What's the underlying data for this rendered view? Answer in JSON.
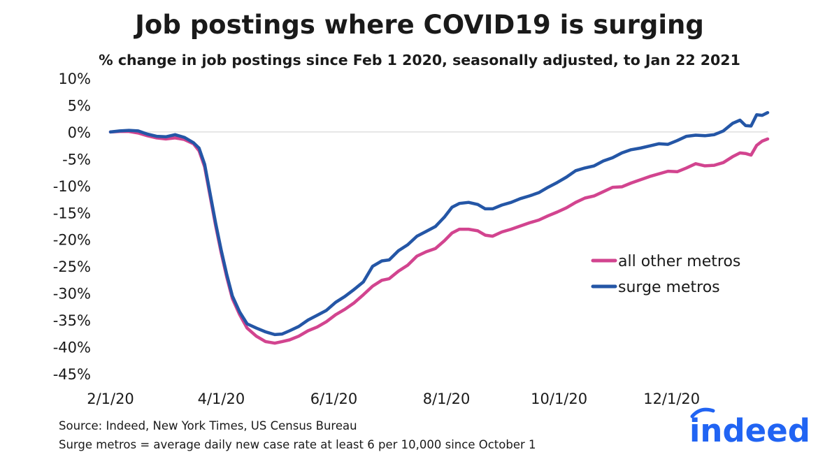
{
  "chart_data": {
    "type": "line",
    "title": "Job postings where COVID19 is surging",
    "subtitle": "% change in job postings since Feb 1 2020, seasonally adjusted, to Jan 22 2021",
    "xlabel": "",
    "ylabel": "",
    "x_start": "2020-02-01",
    "x_end": "2021-01-22",
    "ylim": [
      -45,
      10
    ],
    "y_ticks": [
      10,
      5,
      0,
      -5,
      -10,
      -15,
      -20,
      -25,
      -30,
      -35,
      -40,
      -45
    ],
    "y_tick_labels": [
      "10%",
      "5%",
      "0%",
      "-5%",
      "-10%",
      "-15%",
      "-20%",
      "-25%",
      "-30%",
      "-35%",
      "-40%",
      "-45%"
    ],
    "x_ticks": [
      "2020-02-01",
      "2020-04-01",
      "2020-06-01",
      "2020-08-01",
      "2020-10-01",
      "2020-12-01"
    ],
    "x_tick_labels": [
      "2/1/20",
      "4/1/20",
      "6/1/20",
      "8/1/20",
      "10/1/20",
      "12/1/20"
    ],
    "grid": false,
    "legend_position": "right",
    "series": [
      {
        "name": "all other metros",
        "color": "#d2448f",
        "points": [
          [
            "2020-02-01",
            0.0
          ],
          [
            "2020-02-06",
            0.1
          ],
          [
            "2020-02-11",
            0.1
          ],
          [
            "2020-02-16",
            -0.2
          ],
          [
            "2020-02-21",
            -0.7
          ],
          [
            "2020-02-26",
            -1.1
          ],
          [
            "2020-03-02",
            -1.3
          ],
          [
            "2020-03-07",
            -1.1
          ],
          [
            "2020-03-12",
            -1.4
          ],
          [
            "2020-03-17",
            -2.2
          ],
          [
            "2020-03-20",
            -3.5
          ],
          [
            "2020-03-23",
            -6.5
          ],
          [
            "2020-03-26",
            -12.0
          ],
          [
            "2020-03-29",
            -17.5
          ],
          [
            "2020-04-01",
            -22.5
          ],
          [
            "2020-04-04",
            -27.0
          ],
          [
            "2020-04-07",
            -31.0
          ],
          [
            "2020-04-11",
            -34.0
          ],
          [
            "2020-04-15",
            -36.5
          ],
          [
            "2020-04-20",
            -38.0
          ],
          [
            "2020-04-25",
            -39.0
          ],
          [
            "2020-04-30",
            -39.3
          ],
          [
            "2020-05-04",
            -39.0
          ],
          [
            "2020-05-08",
            -38.7
          ],
          [
            "2020-05-13",
            -38.0
          ],
          [
            "2020-05-18",
            -37.0
          ],
          [
            "2020-05-23",
            -36.3
          ],
          [
            "2020-05-28",
            -35.3
          ],
          [
            "2020-06-02",
            -34.0
          ],
          [
            "2020-06-07",
            -33.0
          ],
          [
            "2020-06-12",
            -31.8
          ],
          [
            "2020-06-17",
            -30.3
          ],
          [
            "2020-06-22",
            -28.7
          ],
          [
            "2020-06-27",
            -27.6
          ],
          [
            "2020-07-01",
            -27.3
          ],
          [
            "2020-07-06",
            -25.9
          ],
          [
            "2020-07-11",
            -24.8
          ],
          [
            "2020-07-16",
            -23.1
          ],
          [
            "2020-07-21",
            -22.3
          ],
          [
            "2020-07-26",
            -21.7
          ],
          [
            "2020-07-31",
            -20.2
          ],
          [
            "2020-08-04",
            -18.8
          ],
          [
            "2020-08-08",
            -18.1
          ],
          [
            "2020-08-13",
            -18.1
          ],
          [
            "2020-08-18",
            -18.4
          ],
          [
            "2020-08-22",
            -19.2
          ],
          [
            "2020-08-26",
            -19.4
          ],
          [
            "2020-08-31",
            -18.6
          ],
          [
            "2020-09-05",
            -18.1
          ],
          [
            "2020-09-10",
            -17.5
          ],
          [
            "2020-09-15",
            -16.9
          ],
          [
            "2020-09-20",
            -16.4
          ],
          [
            "2020-09-25",
            -15.6
          ],
          [
            "2020-09-30",
            -14.9
          ],
          [
            "2020-10-05",
            -14.1
          ],
          [
            "2020-10-10",
            -13.1
          ],
          [
            "2020-10-15",
            -12.3
          ],
          [
            "2020-10-20",
            -11.9
          ],
          [
            "2020-10-25",
            -11.1
          ],
          [
            "2020-10-30",
            -10.3
          ],
          [
            "2020-11-04",
            -10.2
          ],
          [
            "2020-11-09",
            -9.5
          ],
          [
            "2020-11-14",
            -8.9
          ],
          [
            "2020-11-19",
            -8.3
          ],
          [
            "2020-11-24",
            -7.8
          ],
          [
            "2020-11-29",
            -7.3
          ],
          [
            "2020-12-04",
            -7.4
          ],
          [
            "2020-12-09",
            -6.7
          ],
          [
            "2020-12-14",
            -5.9
          ],
          [
            "2020-12-19",
            -6.3
          ],
          [
            "2020-12-24",
            -6.2
          ],
          [
            "2020-12-29",
            -5.7
          ],
          [
            "2021-01-03",
            -4.6
          ],
          [
            "2021-01-07",
            -3.9
          ],
          [
            "2021-01-10",
            -4.0
          ],
          [
            "2021-01-13",
            -4.3
          ],
          [
            "2021-01-16",
            -2.5
          ],
          [
            "2021-01-19",
            -1.7
          ],
          [
            "2021-01-22",
            -1.3
          ]
        ]
      },
      {
        "name": "surge metros",
        "color": "#2456a6",
        "points": [
          [
            "2020-02-01",
            0.0
          ],
          [
            "2020-02-06",
            0.2
          ],
          [
            "2020-02-11",
            0.3
          ],
          [
            "2020-02-16",
            0.2
          ],
          [
            "2020-02-21",
            -0.4
          ],
          [
            "2020-02-26",
            -0.8
          ],
          [
            "2020-03-02",
            -0.9
          ],
          [
            "2020-03-07",
            -0.5
          ],
          [
            "2020-03-12",
            -1.0
          ],
          [
            "2020-03-17",
            -2.0
          ],
          [
            "2020-03-20",
            -3.0
          ],
          [
            "2020-03-23",
            -6.0
          ],
          [
            "2020-03-26",
            -11.5
          ],
          [
            "2020-03-29",
            -17.0
          ],
          [
            "2020-04-01",
            -22.0
          ],
          [
            "2020-04-04",
            -26.5
          ],
          [
            "2020-04-07",
            -30.5
          ],
          [
            "2020-04-11",
            -33.5
          ],
          [
            "2020-04-15",
            -35.7
          ],
          [
            "2020-04-20",
            -36.5
          ],
          [
            "2020-04-25",
            -37.2
          ],
          [
            "2020-04-30",
            -37.7
          ],
          [
            "2020-05-04",
            -37.6
          ],
          [
            "2020-05-08",
            -37.0
          ],
          [
            "2020-05-13",
            -36.2
          ],
          [
            "2020-05-18",
            -35.0
          ],
          [
            "2020-05-23",
            -34.1
          ],
          [
            "2020-05-28",
            -33.2
          ],
          [
            "2020-06-02",
            -31.7
          ],
          [
            "2020-06-07",
            -30.6
          ],
          [
            "2020-06-12",
            -29.3
          ],
          [
            "2020-06-17",
            -27.9
          ],
          [
            "2020-06-22",
            -25.0
          ],
          [
            "2020-06-27",
            -24.0
          ],
          [
            "2020-07-01",
            -23.8
          ],
          [
            "2020-07-06",
            -22.1
          ],
          [
            "2020-07-11",
            -21.0
          ],
          [
            "2020-07-16",
            -19.4
          ],
          [
            "2020-07-21",
            -18.5
          ],
          [
            "2020-07-26",
            -17.6
          ],
          [
            "2020-07-31",
            -15.8
          ],
          [
            "2020-08-04",
            -14.0
          ],
          [
            "2020-08-08",
            -13.3
          ],
          [
            "2020-08-13",
            -13.1
          ],
          [
            "2020-08-18",
            -13.5
          ],
          [
            "2020-08-22",
            -14.3
          ],
          [
            "2020-08-26",
            -14.3
          ],
          [
            "2020-08-31",
            -13.6
          ],
          [
            "2020-09-05",
            -13.1
          ],
          [
            "2020-09-10",
            -12.4
          ],
          [
            "2020-09-15",
            -11.9
          ],
          [
            "2020-09-20",
            -11.3
          ],
          [
            "2020-09-25",
            -10.3
          ],
          [
            "2020-09-30",
            -9.4
          ],
          [
            "2020-10-05",
            -8.4
          ],
          [
            "2020-10-10",
            -7.2
          ],
          [
            "2020-10-15",
            -6.7
          ],
          [
            "2020-10-20",
            -6.3
          ],
          [
            "2020-10-25",
            -5.4
          ],
          [
            "2020-10-30",
            -4.8
          ],
          [
            "2020-11-04",
            -3.9
          ],
          [
            "2020-11-09",
            -3.3
          ],
          [
            "2020-11-14",
            -3.0
          ],
          [
            "2020-11-19",
            -2.6
          ],
          [
            "2020-11-24",
            -2.2
          ],
          [
            "2020-11-29",
            -2.3
          ],
          [
            "2020-12-04",
            -1.6
          ],
          [
            "2020-12-09",
            -0.8
          ],
          [
            "2020-12-14",
            -0.6
          ],
          [
            "2020-12-19",
            -0.7
          ],
          [
            "2020-12-24",
            -0.5
          ],
          [
            "2020-12-29",
            0.2
          ],
          [
            "2021-01-03",
            1.6
          ],
          [
            "2021-01-07",
            2.2
          ],
          [
            "2021-01-10",
            1.2
          ],
          [
            "2021-01-13",
            1.1
          ],
          [
            "2021-01-16",
            3.2
          ],
          [
            "2021-01-19",
            3.1
          ],
          [
            "2021-01-22",
            3.6
          ]
        ]
      }
    ]
  },
  "footer": {
    "source": "Source: Indeed, New York Times, US Census Bureau",
    "note": "Surge metros = average daily new case rate at least 6 per 10,000 since October 1"
  },
  "logo": {
    "text": "indeed",
    "color": "#2164f3"
  }
}
